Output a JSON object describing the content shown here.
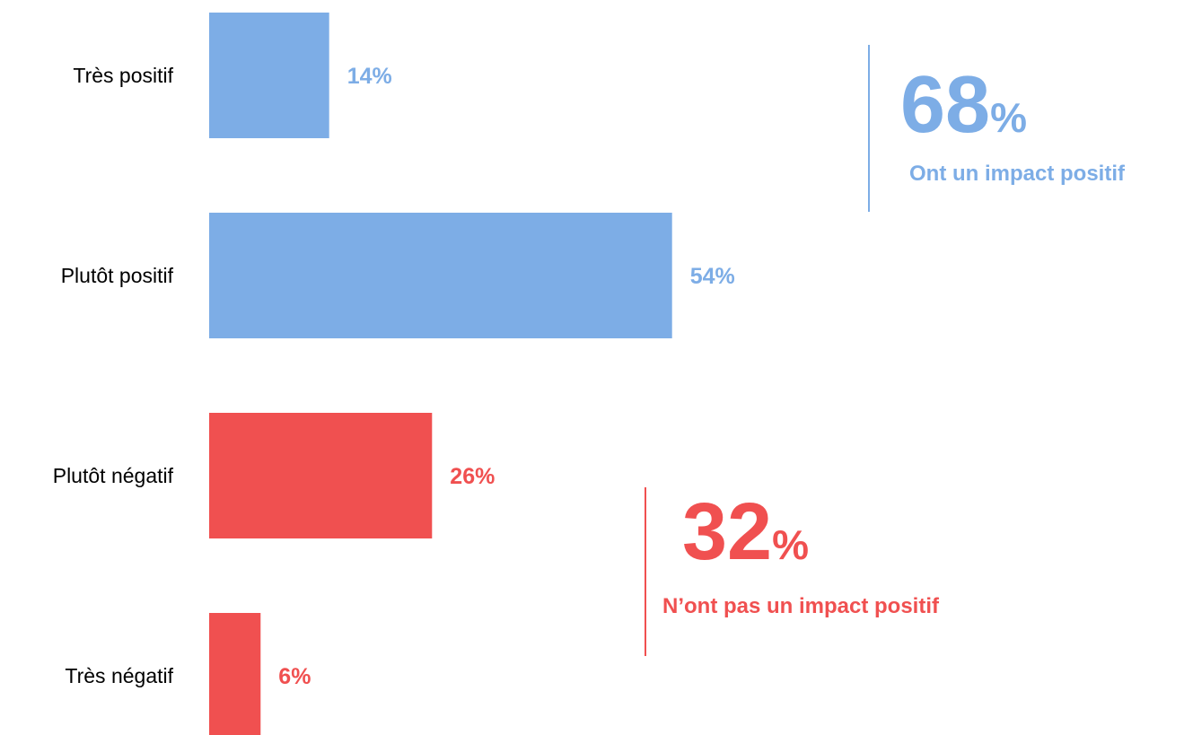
{
  "colors": {
    "positive": "#7DADE6",
    "negative": "#F05050"
  },
  "chart_data": {
    "type": "bar",
    "orientation": "horizontal",
    "categories": [
      "Très positif",
      "Plutôt positif",
      "Plutôt négatif",
      "Très négatif"
    ],
    "values": [
      14,
      54,
      26,
      6
    ],
    "value_labels": [
      "14%",
      "54%",
      "26%",
      "6%"
    ],
    "groups": [
      "positive",
      "positive",
      "negative",
      "negative"
    ],
    "unit": "%",
    "xlim": [
      0,
      100
    ],
    "grid": false
  },
  "callouts": {
    "positive": {
      "number": "68",
      "unit": "%",
      "caption": "Ont un impact positif"
    },
    "negative": {
      "number": "32",
      "unit": "%",
      "caption": "N’ont pas un impact positif"
    }
  }
}
